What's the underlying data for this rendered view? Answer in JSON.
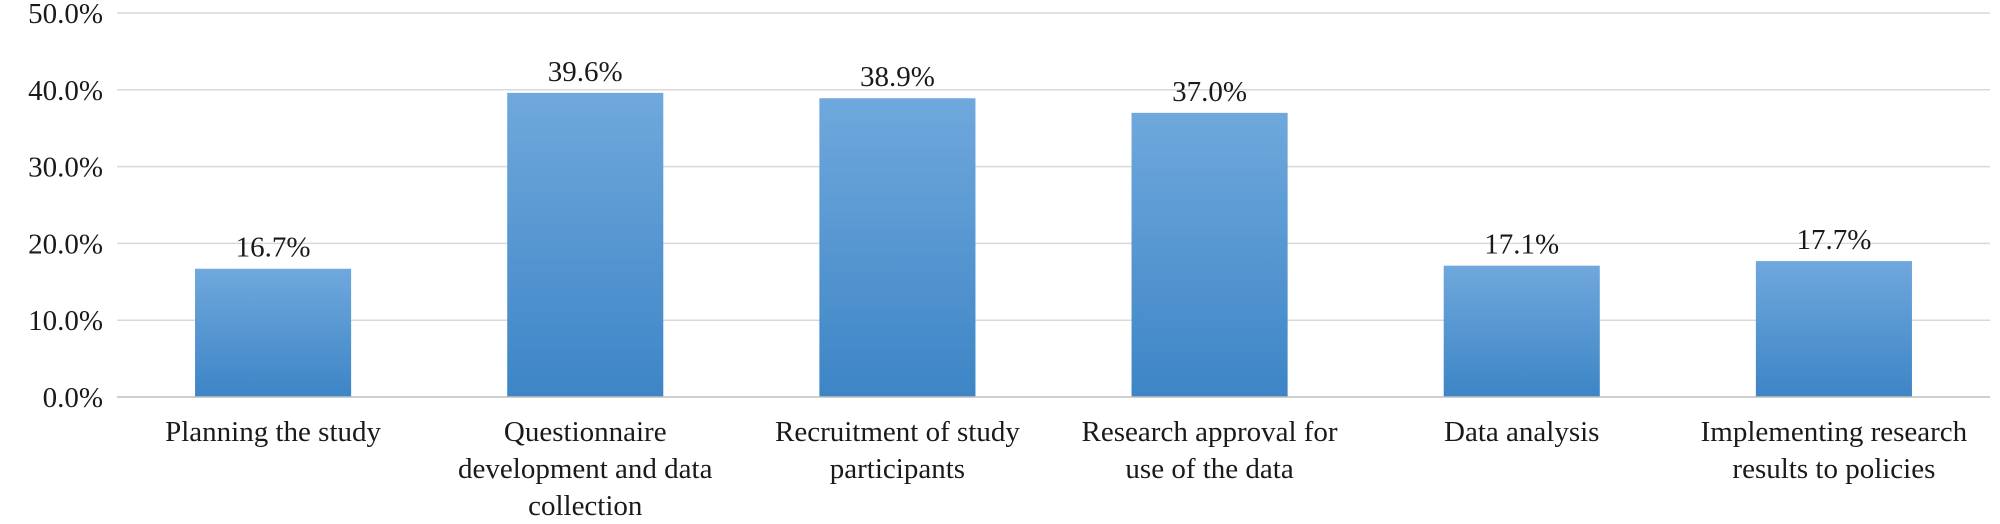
{
  "chart_data": {
    "type": "bar",
    "categories": [
      "Planning the study",
      "Questionnaire development and data collection",
      "Recruitment of study participants",
      "Research approval for use of the data",
      "Data analysis",
      "Implementing research results to policies"
    ],
    "category_lines": [
      [
        "Planning the study"
      ],
      [
        "Questionnaire",
        "development and data",
        "collection"
      ],
      [
        "Recruitment of study",
        "participants"
      ],
      [
        "Research approval for",
        "use of the data"
      ],
      [
        "Data analysis"
      ],
      [
        "Implementing research",
        "results to policies"
      ]
    ],
    "values": [
      16.7,
      39.6,
      38.9,
      37.0,
      17.1,
      17.7
    ],
    "value_labels": [
      "16.7%",
      "39.6%",
      "38.9%",
      "37.0%",
      "17.1%",
      "17.7%"
    ],
    "ylim": [
      0,
      50
    ],
    "yticks": [
      "0.0%",
      "10.0%",
      "20.0%",
      "30.0%",
      "40.0%",
      "50.0%"
    ],
    "grid": true,
    "legend": "none",
    "colors": {
      "bar_top": "#6fa8dc",
      "bar_bottom": "#3d85c6"
    }
  }
}
